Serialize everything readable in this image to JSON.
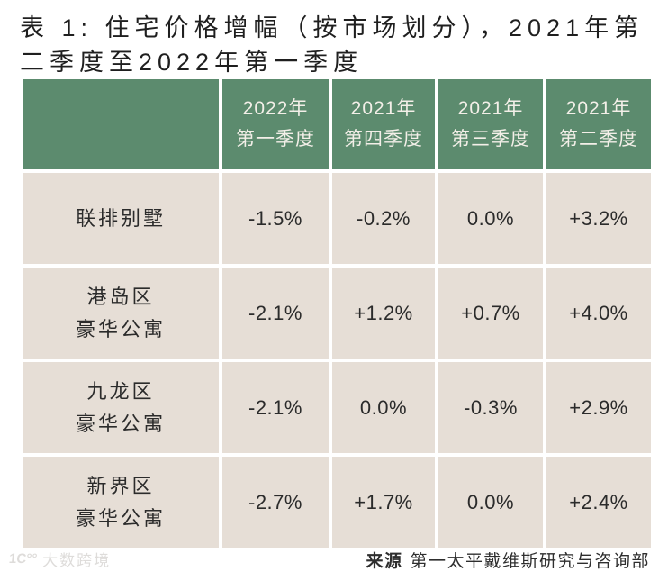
{
  "title": "表 1: 住宅价格增幅（按市场划分），2021年第二季度至2022年第一季度",
  "table": {
    "columns": [
      "2022年\n第一季度",
      "2021年\n第四季度",
      "2021年\n第三季度",
      "2021年\n第二季度"
    ],
    "rows": [
      {
        "label": "联排别墅",
        "values": [
          "-1.5%",
          "-0.2%",
          "0.0%",
          "+3.2%"
        ]
      },
      {
        "label": "港岛区\n豪华公寓",
        "values": [
          "-2.1%",
          "+1.2%",
          "+0.7%",
          "+4.0%"
        ]
      },
      {
        "label": "九龙区\n豪华公寓",
        "values": [
          "-2.1%",
          "0.0%",
          "-0.3%",
          "+2.9%"
        ]
      },
      {
        "label": "新界区\n豪华公寓",
        "values": [
          "-2.7%",
          "+1.7%",
          "0.0%",
          "+2.4%"
        ]
      }
    ]
  },
  "source": {
    "prefix": "来源",
    "text": "第一太平戴维斯研究与咨询部"
  },
  "watermark": {
    "logo": "1C°°",
    "text": "大数跨境"
  },
  "colors": {
    "header_green": "#5c8b6e",
    "row_beige": "#e6ded6",
    "header_text": "#f3efe8",
    "body_text": "#2b2b2b"
  },
  "chart_data": {
    "type": "table",
    "title": "表 1: 住宅价格增幅（按市场划分），2021年第二季度至2022年第一季度",
    "columns": [
      "2022年第一季度",
      "2021年第四季度",
      "2021年第三季度",
      "2021年第二季度"
    ],
    "row_labels": [
      "联排别墅",
      "港岛区豪华公寓",
      "九龙区豪华公寓",
      "新界区豪华公寓"
    ],
    "values_percent": [
      [
        -1.5,
        -0.2,
        0.0,
        3.2
      ],
      [
        -2.1,
        1.2,
        0.7,
        4.0
      ],
      [
        -2.1,
        0.0,
        -0.3,
        2.9
      ],
      [
        -2.7,
        1.7,
        0.0,
        2.4
      ]
    ],
    "unit": "%",
    "source": "来源 第一太平戴维斯研究与咨询部"
  }
}
